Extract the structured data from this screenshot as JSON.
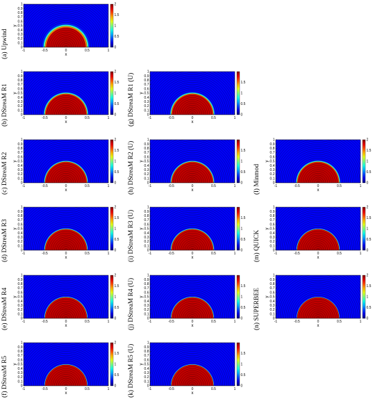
{
  "chart_data": [
    {
      "id": "a",
      "caption": "(a) Upwind",
      "type": "heatmap",
      "xlabel": "x",
      "ylabel": "y",
      "xlim": [
        -1,
        1
      ],
      "ylim": [
        0,
        1
      ],
      "xticks": [
        "-1",
        "-0.5",
        "0",
        "0.5",
        "1"
      ],
      "yticks": [
        "0",
        "0.1",
        "0.2",
        "0.3",
        "0.4",
        "0.5",
        "0.6",
        "0.7",
        "0.8",
        "0.9",
        "1"
      ],
      "colorbar": {
        "min": 0,
        "max": 2,
        "ticks": [
          "0",
          "0.5",
          "1",
          "1.5",
          "2"
        ]
      },
      "front_radius": 0.5,
      "front_width": 0.06
    },
    {
      "id": "b",
      "caption": "(b) DStreaM R1",
      "type": "heatmap",
      "xlabel": "x",
      "ylabel": "y",
      "xlim": [
        -1,
        1
      ],
      "ylim": [
        0,
        1
      ],
      "xticks": [
        "-1",
        "-0.5",
        "0",
        "0.5",
        "1"
      ],
      "yticks": [
        "0",
        "0.1",
        "0.2",
        "0.3",
        "0.4",
        "0.5",
        "0.6",
        "0.7",
        "0.8",
        "0.9",
        "1"
      ],
      "colorbar": {
        "min": 0,
        "max": 2,
        "ticks": [
          "0",
          "0.5",
          "1",
          "1.5",
          "2"
        ]
      },
      "front_radius": 0.5,
      "front_width": 0.035
    },
    {
      "id": "c",
      "caption": "(c) DStreaM R2",
      "type": "heatmap",
      "xlabel": "x",
      "ylabel": "y",
      "xlim": [
        -1,
        1
      ],
      "ylim": [
        0,
        1
      ],
      "xticks": [
        "-1",
        "-0.5",
        "0",
        "0.5",
        "1"
      ],
      "yticks": [
        "0",
        "0.1",
        "0.2",
        "0.3",
        "0.4",
        "0.5",
        "0.6",
        "0.7",
        "0.8",
        "0.9",
        "1"
      ],
      "colorbar": {
        "min": 0,
        "max": 2,
        "ticks": [
          "0",
          "0.5",
          "1",
          "1.5",
          "2"
        ]
      },
      "front_radius": 0.5,
      "front_width": 0.025
    },
    {
      "id": "d",
      "caption": "(d) DStreaM R3",
      "type": "heatmap",
      "xlabel": "x",
      "ylabel": "y",
      "xlim": [
        -1,
        1
      ],
      "ylim": [
        0,
        1
      ],
      "xticks": [
        "-1",
        "-0.5",
        "0",
        "0.5",
        "1"
      ],
      "yticks": [
        "0",
        "0.1",
        "0.2",
        "0.3",
        "0.4",
        "0.5",
        "0.6",
        "0.7",
        "0.8",
        "0.9",
        "1"
      ],
      "colorbar": {
        "min": 0,
        "max": 2,
        "ticks": [
          "0",
          "0.5",
          "1",
          "1.5",
          "2"
        ]
      },
      "front_radius": 0.5,
      "front_width": 0.02
    },
    {
      "id": "e",
      "caption": "(e) DStreaM R4",
      "type": "heatmap",
      "xlabel": "x",
      "ylabel": "y",
      "xlim": [
        -1,
        1
      ],
      "ylim": [
        0,
        1
      ],
      "xticks": [
        "-1",
        "-0.5",
        "0",
        "0.5",
        "1"
      ],
      "yticks": [
        "0",
        "0.1",
        "0.2",
        "0.3",
        "0.4",
        "0.5",
        "0.6",
        "0.7",
        "0.8",
        "0.9",
        "1"
      ],
      "colorbar": {
        "min": 0,
        "max": 2,
        "ticks": [
          "0",
          "0.5",
          "1",
          "1.5",
          "2"
        ]
      },
      "front_radius": 0.5,
      "front_width": 0.015
    },
    {
      "id": "f",
      "caption": "(f) DStreaM R5",
      "type": "heatmap",
      "xlabel": "x",
      "ylabel": "y",
      "xlim": [
        -1,
        1
      ],
      "ylim": [
        0,
        1
      ],
      "xticks": [
        "-1",
        "-0.5",
        "0",
        "0.5",
        "1"
      ],
      "yticks": [
        "0",
        "0.1",
        "0.2",
        "0.3",
        "0.4",
        "0.5",
        "0.6",
        "0.7",
        "0.8",
        "0.9",
        "1"
      ],
      "colorbar": {
        "min": 0,
        "max": 2,
        "ticks": [
          "0",
          "0.5",
          "1",
          "1.5",
          "2"
        ]
      },
      "front_radius": 0.5,
      "front_width": 0.012
    },
    {
      "id": "g",
      "caption": "(g) DStreaM R1 (U)",
      "type": "heatmap",
      "xlabel": "x",
      "ylabel": "y",
      "xlim": [
        -1,
        1
      ],
      "ylim": [
        0,
        1
      ],
      "xticks": [
        "-1",
        "-0.5",
        "0",
        "0.5",
        "1"
      ],
      "yticks": [
        "0",
        "0.1",
        "0.2",
        "0.3",
        "0.4",
        "0.5",
        "0.6",
        "0.7",
        "0.8",
        "0.9",
        "1"
      ],
      "colorbar": {
        "min": 0,
        "max": 2,
        "ticks": [
          "0",
          "0.5",
          "1",
          "1.5"
        ]
      },
      "front_radius": 0.5,
      "front_width": 0.035
    },
    {
      "id": "h",
      "caption": "(h) DStreaM R2 (U)",
      "type": "heatmap",
      "xlabel": "x",
      "ylabel": "y",
      "xlim": [
        -1,
        1
      ],
      "ylim": [
        0,
        1
      ],
      "xticks": [
        "-1",
        "-0.5",
        "0",
        "0.5",
        "1"
      ],
      "yticks": [
        "0",
        "0.1",
        "0.2",
        "0.3",
        "0.4",
        "0.5",
        "0.6",
        "0.7",
        "0.8",
        "0.9",
        "1"
      ],
      "colorbar": {
        "min": 0,
        "max": 2,
        "ticks": [
          "0",
          "0.5",
          "1",
          "1.5"
        ]
      },
      "front_radius": 0.5,
      "front_width": 0.025
    },
    {
      "id": "i",
      "caption": "(i) DStreaM R3 (U)",
      "type": "heatmap",
      "xlabel": "x",
      "ylabel": "y",
      "xlim": [
        -1,
        1
      ],
      "ylim": [
        0,
        1
      ],
      "xticks": [
        "-1",
        "-0.5",
        "0",
        "0.5",
        "1"
      ],
      "yticks": [
        "0",
        "0.1",
        "0.2",
        "0.3",
        "0.4",
        "0.5",
        "0.6",
        "0.7",
        "0.8",
        "0.9",
        "1"
      ],
      "colorbar": {
        "min": 0,
        "max": 2,
        "ticks": [
          "0",
          "0.5",
          "1",
          "1.5"
        ]
      },
      "front_radius": 0.5,
      "front_width": 0.02
    },
    {
      "id": "j",
      "caption": "(j) DStreaM R4 (U)",
      "type": "heatmap",
      "xlabel": "x",
      "ylabel": "y",
      "xlim": [
        -1,
        1
      ],
      "ylim": [
        0,
        1
      ],
      "xticks": [
        "-1",
        "-0.5",
        "0",
        "0.5",
        "1"
      ],
      "yticks": [
        "0",
        "0.1",
        "0.2",
        "0.3",
        "0.4",
        "0.5",
        "0.6",
        "0.7",
        "0.8",
        "0.9",
        "1"
      ],
      "colorbar": {
        "min": 0,
        "max": 2,
        "ticks": [
          "0",
          "0.5",
          "1",
          "1.5"
        ]
      },
      "front_radius": 0.5,
      "front_width": 0.015
    },
    {
      "id": "k",
      "caption": "(k) DStreaM R5 (U)",
      "type": "heatmap",
      "xlabel": "x",
      "ylabel": "y",
      "xlim": [
        -1,
        1
      ],
      "ylim": [
        0,
        1
      ],
      "xticks": [
        "-1",
        "-0.5",
        "0",
        "0.5",
        "1"
      ],
      "yticks": [
        "0",
        "0.1",
        "0.2",
        "0.3",
        "0.4",
        "0.5",
        "0.6",
        "0.7",
        "0.8",
        "0.9",
        "1"
      ],
      "colorbar": {
        "min": 0,
        "max": 2,
        "ticks": [
          "0",
          "0.5",
          "1",
          "1.5"
        ]
      },
      "front_radius": 0.5,
      "front_width": 0.012
    },
    {
      "id": "l",
      "caption": "(l) Minmod",
      "type": "heatmap",
      "xlabel": "x",
      "ylabel": "y",
      "xlim": [
        -1,
        1
      ],
      "ylim": [
        0,
        1
      ],
      "xticks": [
        "-1",
        "-0.5",
        "0",
        "0.5",
        "1"
      ],
      "yticks": [
        "0",
        "0.1",
        "0.2",
        "0.3",
        "0.4",
        "0.5",
        "0.6",
        "0.7",
        "0.8",
        "0.9",
        "1"
      ],
      "colorbar": {
        "min": 0,
        "max": 2,
        "ticks": [
          "0",
          "0.5",
          "1",
          "1.5",
          "2"
        ]
      },
      "front_radius": 0.5,
      "front_width": 0.03
    },
    {
      "id": "m",
      "caption": "(m) QUICK",
      "type": "heatmap",
      "xlabel": "x",
      "ylabel": "y",
      "xlim": [
        -1,
        1
      ],
      "ylim": [
        0,
        1
      ],
      "xticks": [
        "-1",
        "-0.5",
        "0",
        "0.5",
        "1"
      ],
      "yticks": [
        "0",
        "0.1",
        "0.2",
        "0.3",
        "0.4",
        "0.5",
        "0.6",
        "0.7",
        "0.8",
        "0.9",
        "1"
      ],
      "colorbar": {
        "min": 0,
        "max": 2,
        "ticks": [
          "0",
          "0.5",
          "1",
          "1.5",
          "2"
        ]
      },
      "front_radius": 0.5,
      "front_width": 0.015
    },
    {
      "id": "n",
      "caption": "(n) SUPERBEE",
      "type": "heatmap",
      "xlabel": "x",
      "ylabel": "y",
      "xlim": [
        -1,
        1
      ],
      "ylim": [
        0,
        1
      ],
      "xticks": [
        "-1",
        "-0.5",
        "0",
        "0.5",
        "1"
      ],
      "yticks": [
        "0",
        "0.1",
        "0.2",
        "0.3",
        "0.4",
        "0.5",
        "0.6",
        "0.7",
        "0.8",
        "0.9",
        "1"
      ],
      "colorbar": {
        "min": 0,
        "max": 2,
        "ticks": [
          "0",
          "0.5",
          "1",
          "1.5",
          "2"
        ]
      },
      "front_radius": 0.5,
      "front_width": 0.01
    }
  ]
}
